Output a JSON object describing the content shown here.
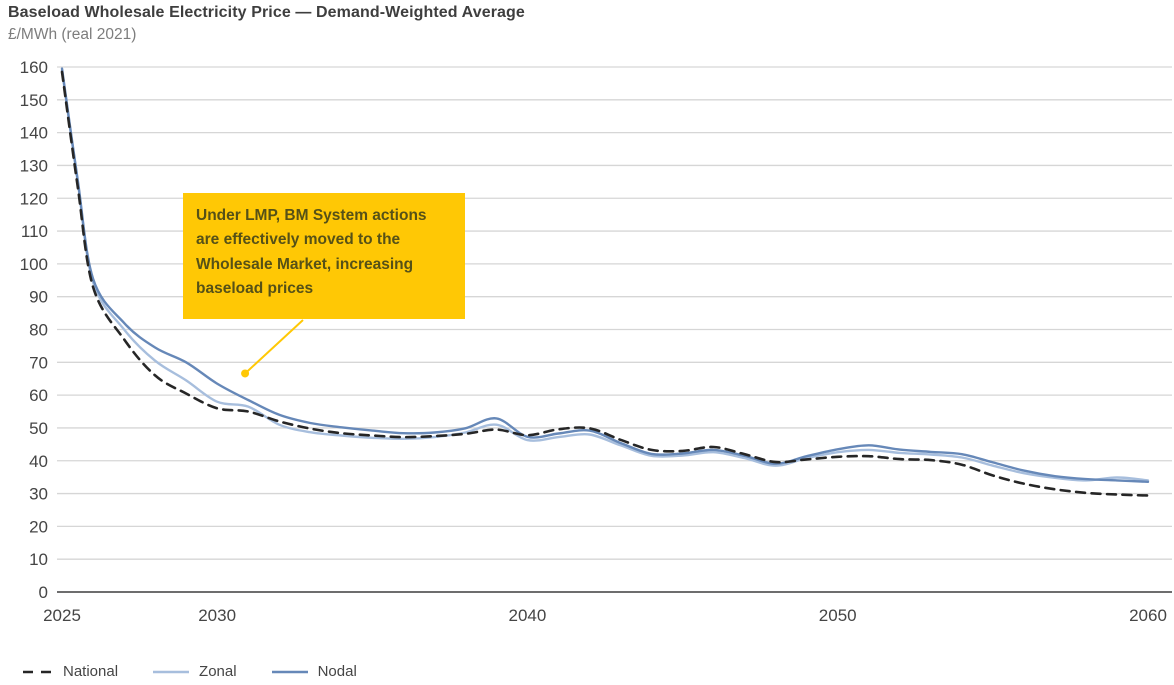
{
  "title": "Baseload Wholesale Electricity Price — Demand-Weighted Average",
  "subtitle": "£/MWh (real 2021)",
  "colors": {
    "title": "#3e3e3e",
    "subtitle": "#7d7d7d",
    "tick_label": "#454545",
    "gridline": "#d6d6d6",
    "axis_line": "#58585a",
    "national": "#262626",
    "zonal": "#a7bedd",
    "nodal": "#6688b8",
    "annotation_bg": "#ffc805",
    "annotation_text": "#565117"
  },
  "annotation": {
    "text": "Under LMP, BM System actions are effectively moved to the Wholesale Market, increasing baseload prices"
  },
  "legend": [
    {
      "label": "National",
      "style": "dashed",
      "color": "#262626"
    },
    {
      "label": "Zonal",
      "style": "solid",
      "color": "#a7bedd"
    },
    {
      "label": "Nodal",
      "style": "solid",
      "color": "#6688b8"
    }
  ],
  "chart_data": {
    "type": "line",
    "title": "Baseload Wholesale Electricity Price — Demand-Weighted Average",
    "ylabel": "£/MWh (real 2021)",
    "xlabel": "",
    "grid": true,
    "legend_position": "bottom-left",
    "xlim": [
      2025,
      2060
    ],
    "ylim": [
      0,
      160
    ],
    "xticks": [
      2025,
      2030,
      2040,
      2050,
      2060
    ],
    "yticks": [
      0,
      10,
      20,
      30,
      40,
      50,
      60,
      70,
      80,
      90,
      100,
      110,
      120,
      130,
      140,
      150,
      160
    ],
    "x": [
      2025,
      2025.5,
      2026,
      2027,
      2028,
      2029,
      2030,
      2031,
      2032,
      2033,
      2034,
      2035,
      2036,
      2037,
      2038,
      2039,
      2040,
      2041,
      2042,
      2043,
      2044,
      2045,
      2046,
      2047,
      2048,
      2049,
      2050,
      2051,
      2052,
      2053,
      2054,
      2055,
      2056,
      2057,
      2058,
      2059,
      2060
    ],
    "series": [
      {
        "name": "National",
        "style": "dashed",
        "color": "#262626",
        "values": [
          158.5,
          124,
          93,
          77,
          66,
          60.5,
          56,
          55,
          52,
          49.8,
          48.4,
          47.7,
          47.2,
          47.5,
          48.2,
          49.5,
          47.8,
          49.6,
          49.9,
          46.4,
          43.3,
          43.0,
          44.2,
          42.0,
          39.6,
          40.4,
          41.2,
          41.4,
          40.5,
          40.2,
          38.8,
          35.5,
          33.0,
          31.3,
          30.2,
          29.7,
          29.4
        ]
      },
      {
        "name": "Zonal",
        "style": "solid",
        "color": "#a7bedd",
        "values": [
          159,
          125.5,
          94.5,
          80,
          70.5,
          64.5,
          58,
          56.5,
          51,
          48.7,
          47.7,
          47.0,
          46.7,
          47.2,
          48.6,
          51.0,
          46.3,
          47.2,
          48.0,
          44.7,
          41.5,
          41.6,
          42.6,
          40.8,
          38.5,
          40.8,
          42.6,
          43.3,
          42.4,
          41.9,
          41.0,
          38.5,
          36.2,
          34.8,
          34.0,
          34.9,
          34.0
        ]
      },
      {
        "name": "Nodal",
        "style": "solid",
        "color": "#6688b8",
        "values": [
          159.5,
          126,
          95.5,
          82,
          74.5,
          70,
          63.5,
          58.5,
          54,
          51.5,
          50.2,
          49.2,
          48.4,
          48.6,
          49.9,
          52.9,
          47.3,
          48.3,
          49.2,
          45.4,
          42.1,
          42.2,
          43.3,
          41.5,
          39.1,
          41.4,
          43.5,
          44.7,
          43.4,
          42.7,
          42.0,
          39.5,
          37.0,
          35.3,
          34.4,
          34.0,
          33.6
        ]
      }
    ],
    "annotation": {
      "text": "Under LMP, BM System actions are effectively moved to the Wholesale Market, increasing baseload prices",
      "pointer_year": 2030.9,
      "pointer_value": 66.6
    }
  }
}
